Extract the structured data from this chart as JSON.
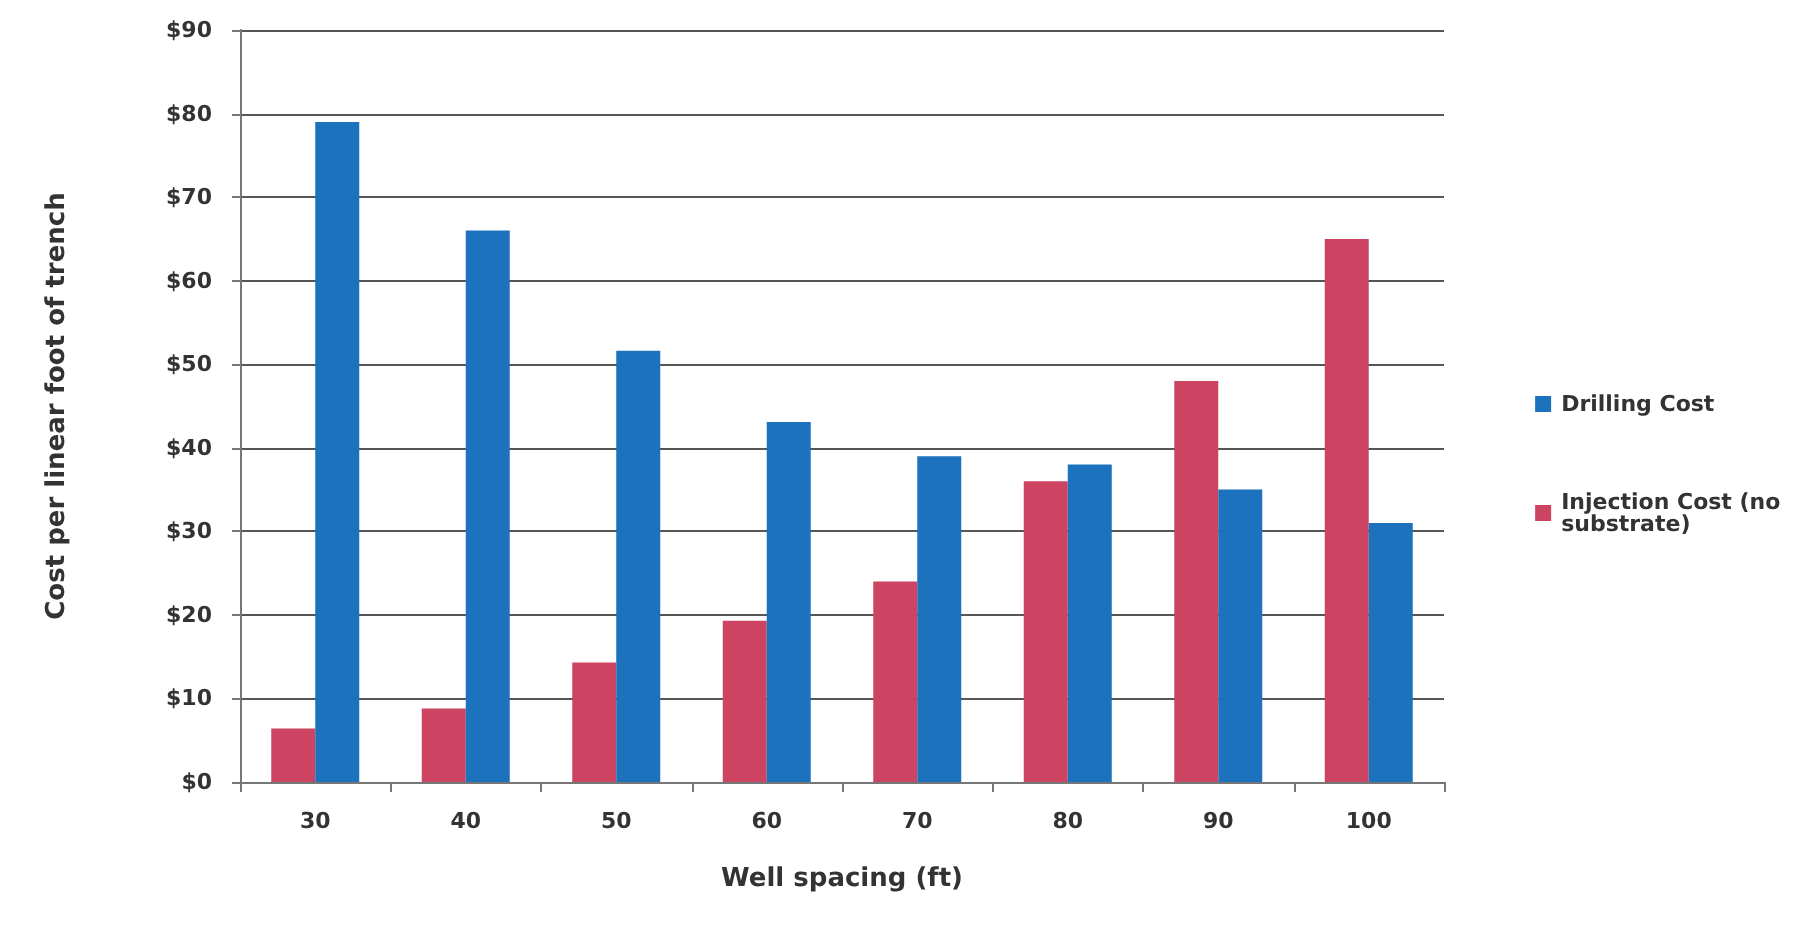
{
  "chart_data": {
    "type": "bar",
    "xlabel": "Well spacing (ft)",
    "ylabel": "Cost per linear foot of trench",
    "categories": [
      "30",
      "40",
      "50",
      "60",
      "70",
      "80",
      "90",
      "100"
    ],
    "series": [
      {
        "name": "Injection Cost (no substrate)",
        "color": "#cc4461",
        "values": [
          6.4,
          8.8,
          14.3,
          19.3,
          24,
          36,
          48,
          65
        ]
      },
      {
        "name": "Drilling Cost",
        "color": "#1c72bd",
        "values": [
          79,
          66,
          51.6,
          43.1,
          39,
          38,
          35,
          31
        ]
      }
    ],
    "ylim": [
      0,
      90
    ],
    "yticks": [
      {
        "value": 0,
        "label": "$0"
      },
      {
        "value": 10,
        "label": "$10"
      },
      {
        "value": 20,
        "label": "$20"
      },
      {
        "value": 30,
        "label": "$30"
      },
      {
        "value": 40,
        "label": "$40"
      },
      {
        "value": 50,
        "label": "$50"
      },
      {
        "value": 60,
        "label": "$60"
      },
      {
        "value": 70,
        "label": "$70"
      },
      {
        "value": 80,
        "label": "$80"
      },
      {
        "value": 90,
        "label": "$90"
      }
    ],
    "grid": "y",
    "legend": "right"
  }
}
